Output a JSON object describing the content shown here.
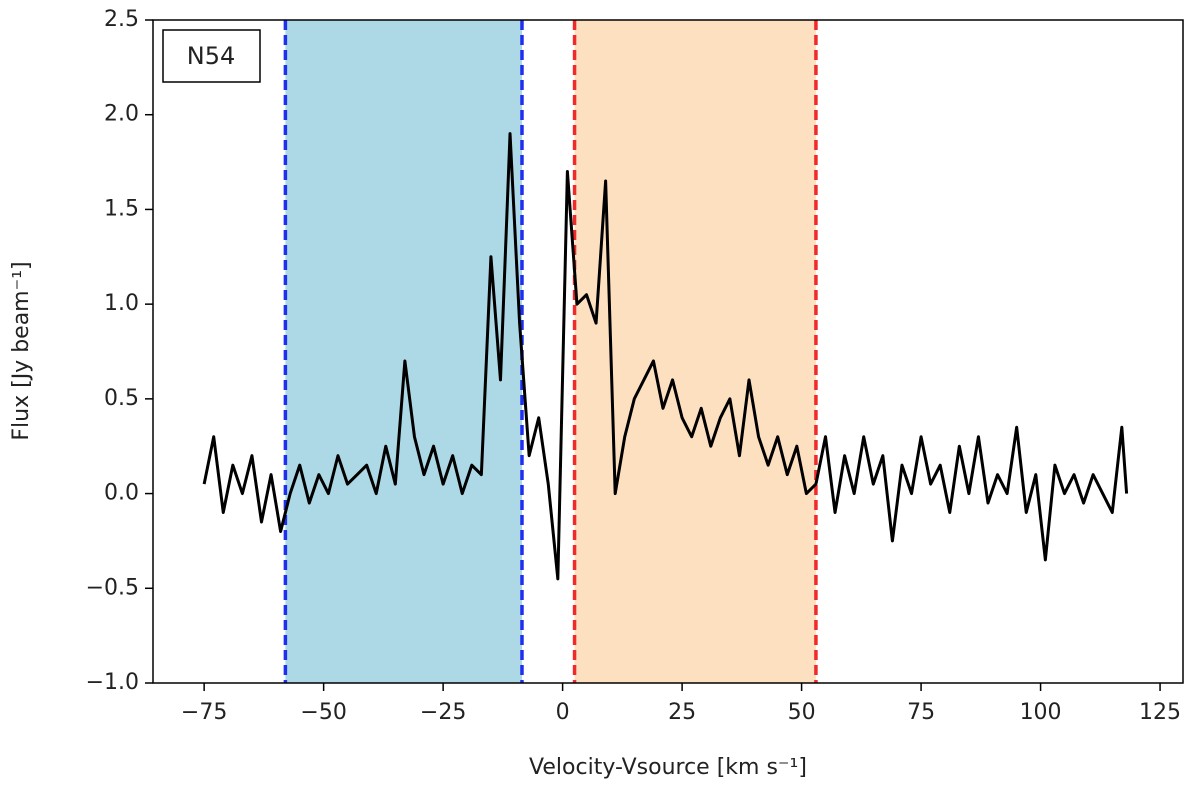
{
  "chart_data": {
    "type": "line",
    "annotation": "N54",
    "x_label": "Velocity-Vsource [km s⁻¹]",
    "y_label": "Flux [Jy beam⁻¹]",
    "xlim": [
      -85.7,
      129.8
    ],
    "ylim": [
      -1.0,
      2.5
    ],
    "xticks": [
      {
        "value": -75,
        "label": "−75"
      },
      {
        "value": -50,
        "label": "−50"
      },
      {
        "value": -25,
        "label": "−25"
      },
      0,
      25,
      50,
      75,
      100,
      125
    ],
    "yticks": [
      {
        "value": -1.0,
        "label": "−1.0"
      },
      {
        "value": -0.5,
        "label": "−0.5"
      },
      {
        "value": 0.0,
        "label": "0.0"
      },
      0.5,
      {
        "value": 1.0,
        "label": "1.0"
      },
      1.5,
      {
        "value": 2.0,
        "label": "2.0"
      },
      2.5
    ],
    "grid": false,
    "spans": [
      {
        "range": [
          -58,
          -8.5
        ],
        "color": "#add8e6",
        "line_color": "#1f2ff0"
      },
      {
        "range": [
          2.5,
          53
        ],
        "color": "#fde0c0",
        "line_color": "#f02a2a"
      }
    ],
    "series": [
      {
        "color": "#000000",
        "x": [
          -75,
          -73,
          -71,
          -69,
          -67,
          -65,
          -63,
          -61,
          -59,
          -57,
          -55,
          -53,
          -51,
          -49,
          -47,
          -45,
          -43,
          -41,
          -39,
          -37,
          -35,
          -33,
          -31,
          -29,
          -27,
          -25,
          -23,
          -21,
          -19,
          -17,
          -15,
          -13,
          -11,
          -9,
          -7,
          -5,
          -3,
          -1,
          1,
          3,
          5,
          7,
          9,
          11,
          13,
          15,
          17,
          19,
          21,
          23,
          25,
          27,
          29,
          31,
          33,
          35,
          37,
          39,
          41,
          43,
          45,
          47,
          49,
          51,
          53,
          55,
          57,
          59,
          61,
          63,
          65,
          67,
          69,
          71,
          73,
          75,
          77,
          79,
          81,
          83,
          85,
          87,
          89,
          91,
          93,
          95,
          97,
          99,
          101,
          103,
          105,
          107,
          109,
          111,
          113,
          115,
          117,
          118
        ],
        "values": [
          0.05,
          0.3,
          -0.1,
          0.15,
          0.0,
          0.2,
          -0.15,
          0.1,
          -0.2,
          0.0,
          0.15,
          -0.05,
          0.1,
          0.0,
          0.2,
          0.05,
          0.1,
          0.15,
          0.0,
          0.25,
          0.05,
          0.7,
          0.3,
          0.1,
          0.25,
          0.05,
          0.2,
          0.0,
          0.15,
          0.1,
          1.25,
          0.6,
          1.9,
          0.9,
          0.2,
          0.4,
          0.05,
          -0.45,
          1.7,
          1.0,
          1.05,
          0.9,
          1.65,
          0.0,
          0.3,
          0.5,
          0.6,
          0.7,
          0.45,
          0.6,
          0.4,
          0.3,
          0.45,
          0.25,
          0.4,
          0.5,
          0.2,
          0.6,
          0.3,
          0.15,
          0.3,
          0.1,
          0.25,
          0.0,
          0.05,
          0.3,
          -0.1,
          0.2,
          0.0,
          0.3,
          0.05,
          0.2,
          -0.25,
          0.15,
          0.0,
          0.3,
          0.05,
          0.15,
          -0.1,
          0.25,
          0.0,
          0.3,
          -0.05,
          0.1,
          0.0,
          0.35,
          -0.1,
          0.1,
          -0.35,
          0.15,
          0.0,
          0.1,
          -0.05,
          0.1,
          0.0,
          -0.1,
          0.35,
          0.0
        ]
      }
    ]
  }
}
